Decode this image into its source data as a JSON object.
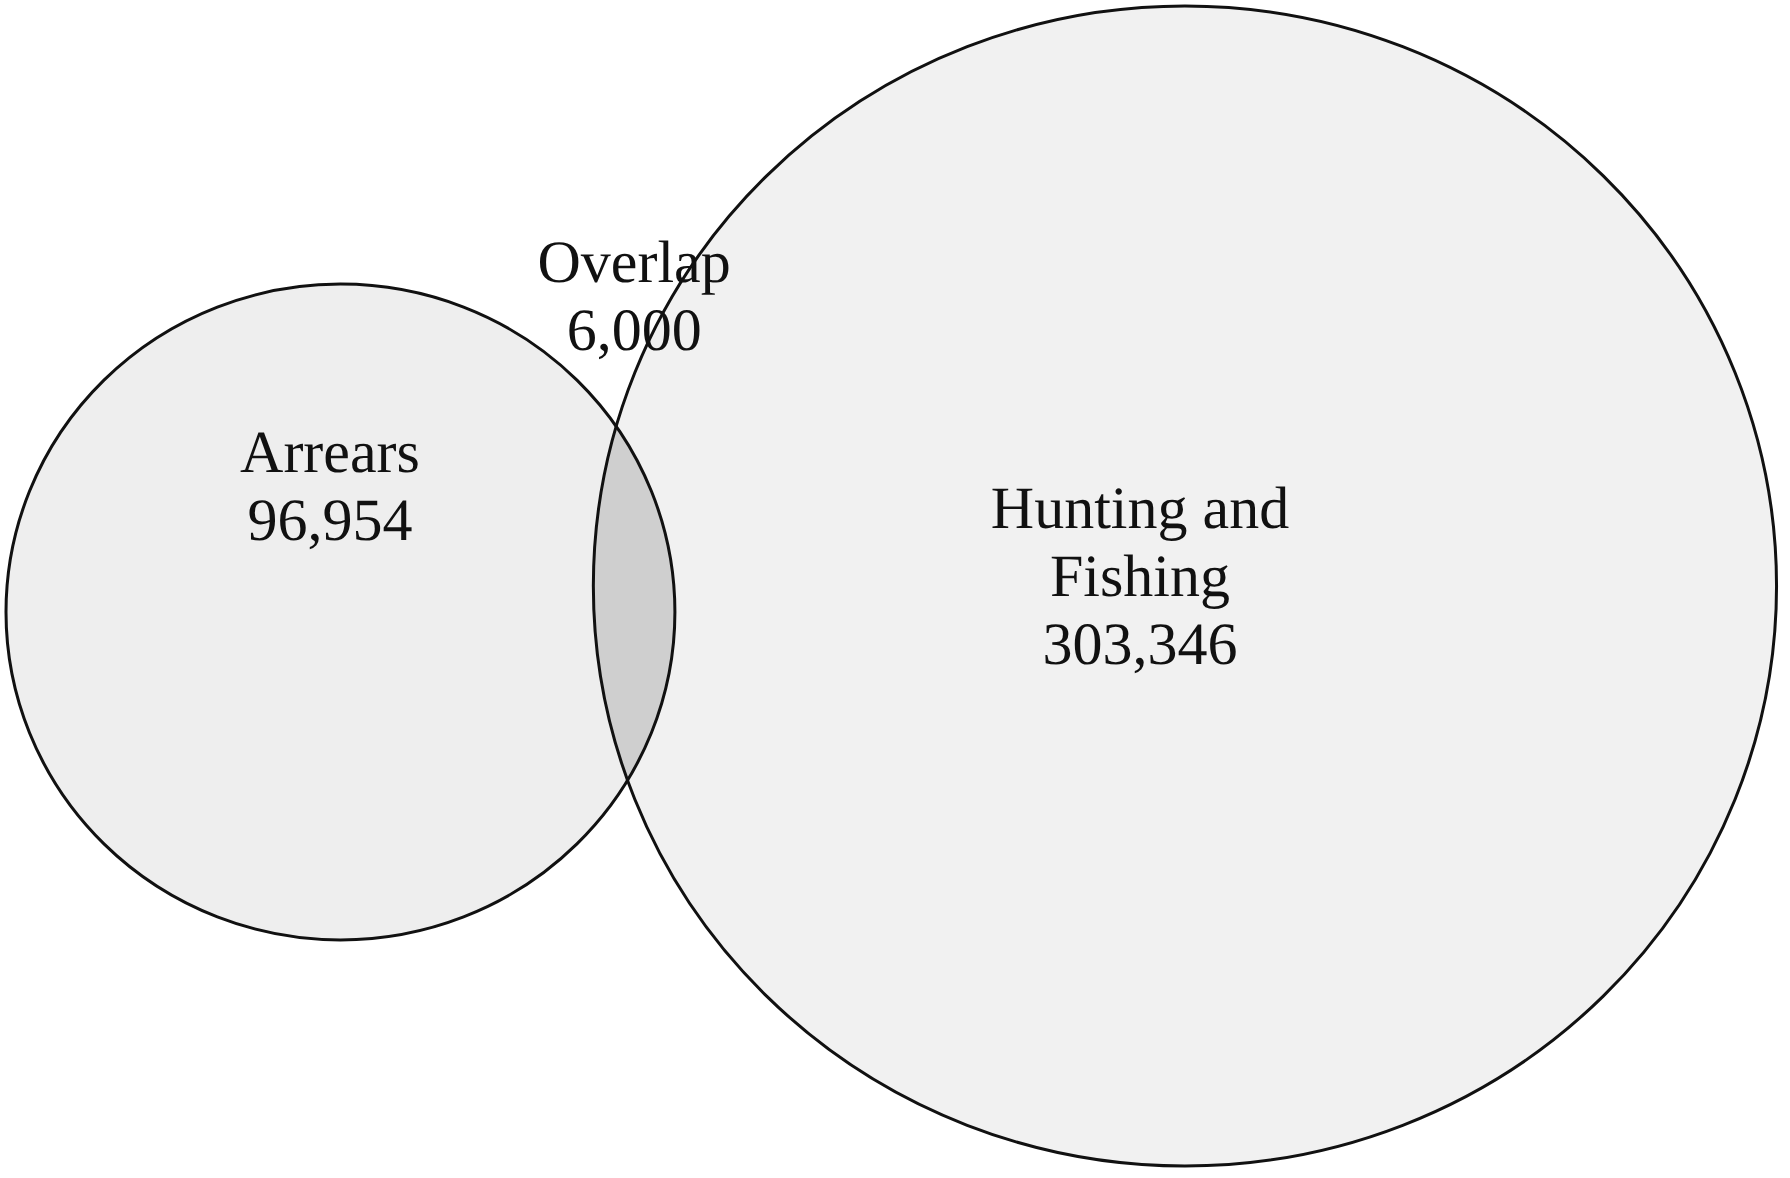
{
  "chart_data": {
    "type": "other",
    "categories": [
      "Arrears",
      "Overlap",
      "Hunting and Fishing"
    ],
    "values": [
      96954,
      6000,
      303346
    ],
    "value_labels": [
      "96,954",
      "6,000",
      "303,346"
    ],
    "colors": [
      "#eeeeee",
      "#cfcfcf",
      "#f1f1f1"
    ]
  }
}
